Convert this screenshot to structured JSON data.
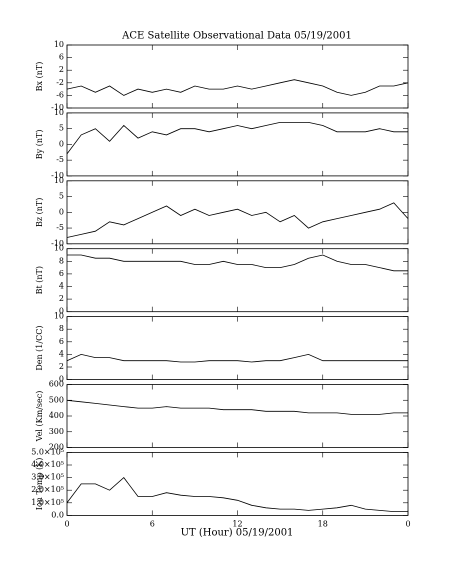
{
  "chart_data": [
    {
      "type": "line",
      "title": "ACE Satellite Observational Data   05/19/2001",
      "ylabel": "Bx (nT)",
      "color": "#000000",
      "x": [
        0,
        1,
        2,
        3,
        4,
        5,
        6,
        7,
        8,
        9,
        10,
        11,
        12,
        13,
        14,
        15,
        16,
        17,
        18,
        19,
        20,
        21,
        22,
        23,
        24
      ],
      "values": [
        -4,
        -3,
        -5,
        -3,
        -6,
        -4,
        -5,
        -4,
        -5,
        -3,
        -4,
        -4,
        -3,
        -4,
        -3,
        -2,
        -1,
        -2,
        -3,
        -5,
        -6,
        -5,
        -3,
        -3,
        -2
      ],
      "xlim": [
        0,
        24
      ],
      "ylim": [
        -10,
        10
      ],
      "yticks": [
        10,
        6,
        2,
        -2,
        -6,
        -10
      ]
    },
    {
      "type": "line",
      "ylabel": "By (nT)",
      "color": "#000000",
      "x": [
        0,
        1,
        2,
        3,
        4,
        5,
        6,
        7,
        8,
        9,
        10,
        11,
        12,
        13,
        14,
        15,
        16,
        17,
        18,
        19,
        20,
        21,
        22,
        23,
        24
      ],
      "values": [
        -3,
        3,
        5,
        1,
        6,
        2,
        4,
        3,
        5,
        5,
        4,
        5,
        6,
        5,
        6,
        7,
        7,
        7,
        6,
        4,
        4,
        4,
        5,
        4,
        4
      ],
      "xlim": [
        0,
        24
      ],
      "ylim": [
        -10,
        10
      ],
      "yticks": [
        10,
        5,
        0,
        -5,
        -10
      ]
    },
    {
      "type": "line",
      "ylabel": "Bz (nT)",
      "color": "#000000",
      "x": [
        0,
        1,
        2,
        3,
        4,
        5,
        6,
        7,
        8,
        9,
        10,
        11,
        12,
        13,
        14,
        15,
        16,
        17,
        18,
        19,
        20,
        21,
        22,
        23,
        24
      ],
      "values": [
        -8,
        -7,
        -6,
        -3,
        -4,
        -2,
        0,
        2,
        -1,
        1,
        -1,
        0,
        1,
        -1,
        0,
        -3,
        -1,
        -5,
        -3,
        -2,
        -1,
        0,
        1,
        3,
        -2
      ],
      "xlim": [
        0,
        24
      ],
      "ylim": [
        -10,
        10
      ],
      "yticks": [
        10,
        5,
        0,
        -5,
        -10
      ]
    },
    {
      "type": "line",
      "ylabel": "Bt (nT)",
      "color": "#000000",
      "x": [
        0,
        1,
        2,
        3,
        4,
        5,
        6,
        7,
        8,
        9,
        10,
        11,
        12,
        13,
        14,
        15,
        16,
        17,
        18,
        19,
        20,
        21,
        22,
        23,
        24
      ],
      "values": [
        9,
        9,
        8.5,
        8.5,
        8,
        8,
        8,
        8,
        8,
        7.5,
        7.5,
        8,
        7.5,
        7.5,
        7,
        7,
        7.5,
        8.5,
        9,
        8,
        7.5,
        7.5,
        7,
        6.5,
        6.5
      ],
      "xlim": [
        0,
        24
      ],
      "ylim": [
        0,
        10
      ],
      "yticks": [
        10,
        8,
        6,
        4,
        2,
        0
      ]
    },
    {
      "type": "line",
      "ylabel": "Den (1/CC)",
      "color": "#000000",
      "x": [
        0,
        1,
        2,
        3,
        4,
        5,
        6,
        7,
        8,
        9,
        10,
        11,
        12,
        13,
        14,
        15,
        16,
        17,
        18,
        19,
        20,
        21,
        22,
        23,
        24
      ],
      "values": [
        3,
        4,
        3.5,
        3.5,
        3,
        3,
        3,
        3,
        2.8,
        2.8,
        3,
        3,
        3,
        2.8,
        3,
        3,
        3.5,
        4,
        3,
        3,
        3,
        3,
        3,
        3,
        3
      ],
      "xlim": [
        0,
        24
      ],
      "ylim": [
        0,
        10
      ],
      "yticks": [
        10,
        8,
        6,
        4,
        2,
        0
      ]
    },
    {
      "type": "line",
      "ylabel": "Vel (Km/sec)",
      "color": "#000000",
      "x": [
        0,
        1,
        2,
        3,
        4,
        5,
        6,
        7,
        8,
        9,
        10,
        11,
        12,
        13,
        14,
        15,
        16,
        17,
        18,
        19,
        20,
        21,
        22,
        23,
        24
      ],
      "values": [
        500,
        490,
        480,
        470,
        460,
        450,
        450,
        460,
        450,
        450,
        450,
        440,
        440,
        440,
        430,
        430,
        430,
        420,
        420,
        420,
        410,
        410,
        410,
        420,
        420
      ],
      "xlim": [
        0,
        24
      ],
      "ylim": [
        200,
        600
      ],
      "yticks": [
        600,
        500,
        400,
        300,
        200
      ]
    },
    {
      "type": "line",
      "ylabel": "Ion Temp (K)",
      "xlabel": "UT (Hour)   05/19/2001",
      "color": "#000000",
      "x": [
        0,
        1,
        2,
        3,
        4,
        5,
        6,
        7,
        8,
        9,
        10,
        11,
        12,
        13,
        14,
        15,
        16,
        17,
        18,
        19,
        20,
        21,
        22,
        23,
        24
      ],
      "values": [
        100000,
        250000,
        250000,
        200000,
        300000,
        150000,
        150000,
        180000,
        160000,
        150000,
        150000,
        140000,
        120000,
        80000,
        60000,
        50000,
        50000,
        40000,
        50000,
        60000,
        80000,
        50000,
        40000,
        30000,
        30000
      ],
      "xlim": [
        0,
        24
      ],
      "ylim": [
        0,
        500000
      ],
      "yticks": [
        {
          "value": 500000,
          "label": "5.0×10⁵"
        },
        {
          "value": 400000,
          "label": "4.0×10⁵"
        },
        {
          "value": 300000,
          "label": "3.0×10⁵"
        },
        {
          "value": 200000,
          "label": "2.0×10⁵"
        },
        {
          "value": 100000,
          "label": "1.0×10⁵"
        },
        {
          "value": 0,
          "label": "0.0"
        }
      ],
      "xticks": [
        0,
        6,
        12,
        18,
        {
          "value": 24,
          "label": "0"
        }
      ]
    }
  ]
}
